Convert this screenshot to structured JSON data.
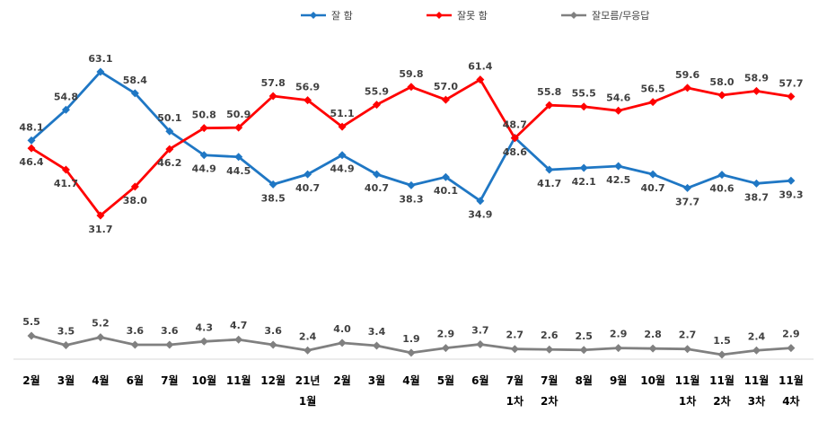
{
  "chart_data": {
    "type": "line",
    "categories": [
      [
        "2월"
      ],
      [
        "3월"
      ],
      [
        "4월"
      ],
      [
        "6월"
      ],
      [
        "7월"
      ],
      [
        "10월"
      ],
      [
        "11월"
      ],
      [
        "12월"
      ],
      [
        "21년",
        "1월"
      ],
      [
        "2월"
      ],
      [
        "3월"
      ],
      [
        "4월"
      ],
      [
        "5월"
      ],
      [
        "6월"
      ],
      [
        "7월",
        "1차"
      ],
      [
        "7월",
        "2차"
      ],
      [
        "8월"
      ],
      [
        "9월"
      ],
      [
        "10월"
      ],
      [
        "11월",
        "1차"
      ],
      [
        "11월",
        "2차"
      ],
      [
        "11월",
        "3차"
      ],
      [
        "11월",
        "4차"
      ]
    ],
    "series": [
      {
        "name": "잘 함",
        "color": "#1f77c4",
        "values": [
          48.1,
          54.8,
          63.1,
          58.4,
          50.1,
          44.9,
          44.5,
          38.5,
          40.7,
          44.9,
          40.7,
          38.3,
          40.1,
          34.9,
          48.7,
          41.7,
          42.1,
          42.5,
          40.7,
          37.7,
          40.6,
          38.7,
          39.3
        ]
      },
      {
        "name": "잘못 함",
        "color": "#ff0000",
        "values": [
          46.4,
          41.7,
          31.7,
          38.0,
          46.2,
          50.8,
          50.9,
          57.8,
          56.9,
          51.1,
          55.9,
          59.8,
          57.0,
          61.4,
          48.6,
          55.8,
          55.5,
          54.6,
          56.5,
          59.6,
          58.0,
          58.9,
          57.7
        ]
      },
      {
        "name": "잘모름/무응답",
        "color": "#808080",
        "values": [
          5.5,
          3.5,
          5.2,
          3.6,
          3.6,
          4.3,
          4.7,
          3.6,
          2.4,
          4.0,
          3.4,
          1.9,
          2.9,
          3.7,
          2.7,
          2.6,
          2.5,
          2.9,
          2.8,
          2.7,
          1.5,
          2.4,
          2.9
        ]
      }
    ],
    "legend_position": "top",
    "grid": false,
    "marker": "diamond"
  }
}
